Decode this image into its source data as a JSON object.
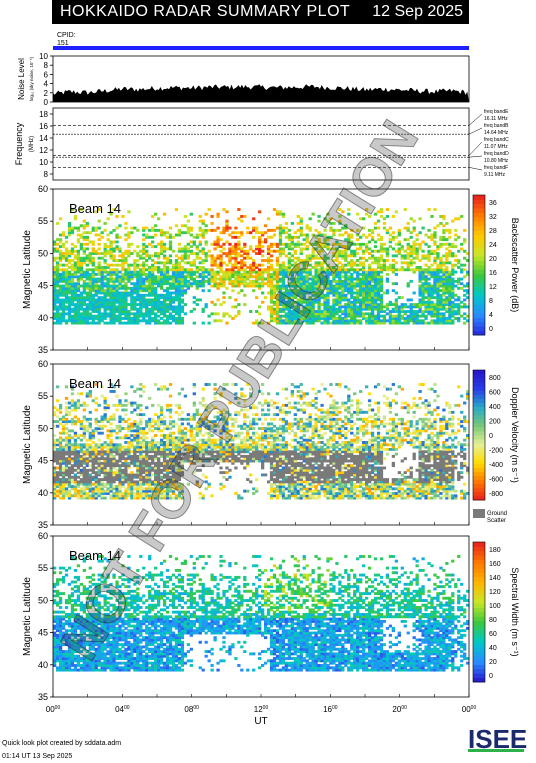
{
  "title": "HOKKAIDO RADAR SUMMARY PLOT",
  "date": "12 Sep 2025",
  "cpid_label": "CPID:",
  "cpid_value": "151",
  "x_axis": {
    "label": "UT",
    "ticks": [
      [
        "00",
        "00"
      ],
      [
        "04",
        "00"
      ],
      [
        "08",
        "00"
      ],
      [
        "12",
        "00"
      ],
      [
        "16",
        "00"
      ],
      [
        "20",
        "00"
      ],
      [
        "00",
        "00"
      ]
    ]
  },
  "noise": {
    "ylabel": "Noise Level",
    "ylabel2": "log₁₀ (sky noise, 10⁻⁵)",
    "ticks": [
      0,
      2,
      4,
      6,
      8,
      10
    ]
  },
  "frequency": {
    "ylabel": "Frequency",
    "unit": "(MHz)",
    "ticks": [
      8,
      10,
      12,
      14,
      16,
      18
    ],
    "bands": [
      {
        "name": "freq bandE",
        "freq": "16.11 MHz",
        "value": 16.11
      },
      {
        "name": "freq bandB",
        "freq": "14.64 MHz",
        "value": 14.64
      },
      {
        "name": "freq bandC",
        "freq": "11.07 MHz",
        "value": 11.07
      },
      {
        "name": "freq bandD",
        "freq": "10.80 MHz",
        "value": 10.8
      },
      {
        "name": "freq bandF",
        "freq": "9.11 MHz",
        "value": 9.11
      }
    ]
  },
  "panels": [
    {
      "beam": "Beam 14",
      "ylabel": "Magnetic Latitude",
      "cbar_label": "Backscatter Power (dB)",
      "cbar_ticks": [
        0,
        4,
        8,
        12,
        16,
        20,
        24,
        28,
        32,
        36
      ]
    },
    {
      "beam": "Beam 14",
      "ylabel": "Magnetic Latitude",
      "cbar_label": "Doppler Velocity (m s⁻¹)",
      "cbar_ticks": [
        -800,
        -600,
        -400,
        -200,
        0,
        200,
        400,
        600,
        800
      ],
      "extra": [
        "Ground",
        "Scatter"
      ]
    },
    {
      "beam": "Beam 14",
      "ylabel": "Magnetic Latitude",
      "cbar_label": "Spectral Width (m s⁻¹)",
      "cbar_ticks": [
        0,
        20,
        40,
        60,
        80,
        100,
        120,
        140,
        160,
        180
      ]
    }
  ],
  "lat_ticks": [
    35,
    40,
    45,
    50,
    55,
    60
  ],
  "watermark": "NOT FOR PUBLICATION",
  "footer": {
    "line1": "Quick look plot created by sddata.adm",
    "line2": "01:14 UT 13 Sep 2025"
  },
  "logo": "ISEE",
  "chart_data": [
    {
      "type": "line",
      "title": "Noise Level",
      "x_range": [
        0,
        24
      ],
      "ylim": [
        0,
        10
      ],
      "x": [
        0,
        1,
        2,
        3,
        4,
        5,
        6,
        7,
        8,
        9,
        10,
        11,
        12,
        13,
        14,
        15,
        16,
        17,
        18,
        19,
        20,
        21,
        22,
        23,
        24
      ],
      "values": [
        1.5,
        2.0,
        1.8,
        2.2,
        2.6,
        2.5,
        2.8,
        2.9,
        2.8,
        3.0,
        3.0,
        3.1,
        3.0,
        2.9,
        3.0,
        3.1,
        2.9,
        2.7,
        2.4,
        2.6,
        2.4,
        2.2,
        2.0,
        2.2,
        1.8
      ]
    },
    {
      "type": "heatmap",
      "title": "Backscatter Power",
      "beam": 14,
      "x_range": [
        0,
        24
      ],
      "ylim": [
        35,
        60
      ],
      "zlim": [
        0,
        36
      ]
    },
    {
      "type": "heatmap",
      "title": "Doppler Velocity",
      "beam": 14,
      "x_range": [
        0,
        24
      ],
      "ylim": [
        35,
        60
      ],
      "zlim": [
        -800,
        800
      ]
    },
    {
      "type": "heatmap",
      "title": "Spectral Width",
      "beam": 14,
      "x_range": [
        0,
        24
      ],
      "ylim": [
        35,
        60
      ],
      "zlim": [
        0,
        180
      ]
    }
  ]
}
